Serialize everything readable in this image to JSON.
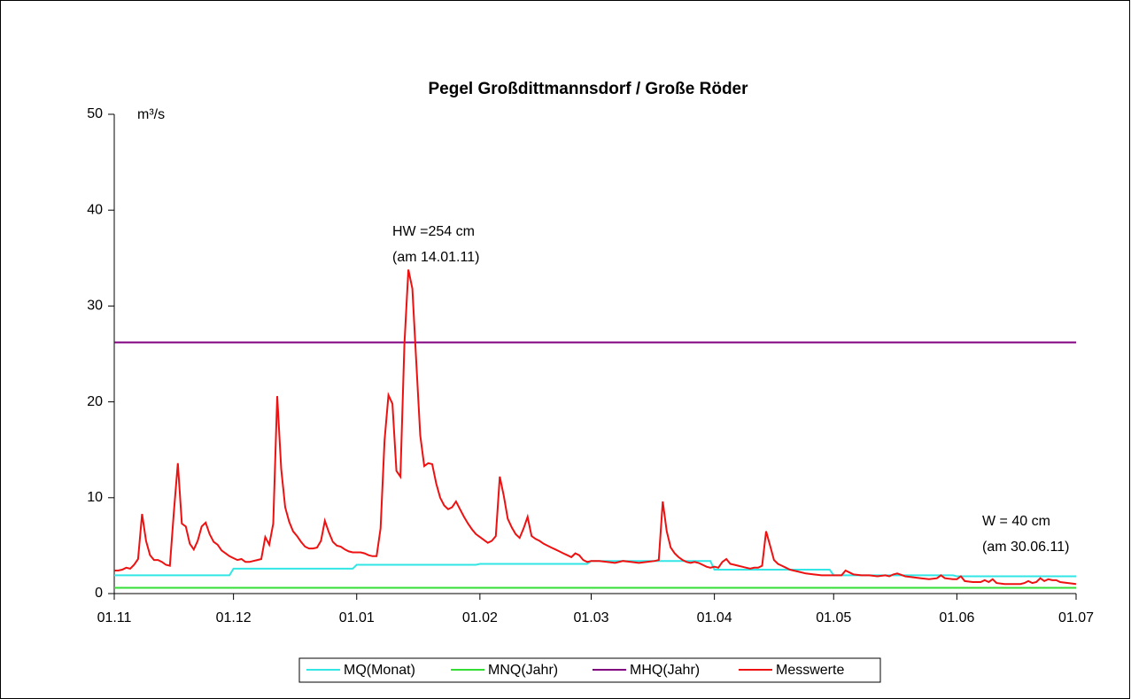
{
  "chart_data": {
    "type": "line",
    "title": "Pegel Großdittmannsdorf / Große Röder",
    "y_label": "m³/s",
    "annotations": [
      [
        "HW =254 cm",
        "(am 14.01.11)"
      ],
      [
        "W = 40 cm",
        "(am 30.06.11)"
      ]
    ],
    "xlim": [
      0,
      242
    ],
    "xticks": [
      {
        "value": 0,
        "label": "01.11"
      },
      {
        "value": 30,
        "label": "01.12"
      },
      {
        "value": 61,
        "label": "01.01"
      },
      {
        "value": 92,
        "label": "01.02"
      },
      {
        "value": 120,
        "label": "01.03"
      },
      {
        "value": 151,
        "label": "01.04"
      },
      {
        "value": 181,
        "label": "01.05"
      },
      {
        "value": 212,
        "label": "01.06"
      },
      {
        "value": 242,
        "label": "01.07"
      }
    ],
    "ylim": [
      0,
      50
    ],
    "yticks": [
      0,
      10,
      20,
      30,
      40,
      50
    ],
    "grid": false,
    "legend": "bottom",
    "series": [
      {
        "name": "MQ(Monat)",
        "color": "#33e6e6",
        "x": [
          0,
          29,
          30,
          60,
          61,
          91,
          92,
          119,
          120,
          150,
          151,
          180,
          181,
          211,
          212,
          242
        ],
        "values": [
          1.9,
          1.9,
          2.6,
          2.6,
          3.0,
          3.0,
          3.1,
          3.1,
          3.4,
          3.4,
          2.5,
          2.5,
          1.9,
          1.9,
          1.8,
          1.8
        ]
      },
      {
        "name": "MNQ(Jahr)",
        "color": "#33dd33",
        "x": [
          0,
          242
        ],
        "values": [
          0.6,
          0.6
        ]
      },
      {
        "name": "MHQ(Jahr)",
        "color": "#800080",
        "x": [
          0,
          242
        ],
        "values": [
          26.2,
          26.2
        ]
      },
      {
        "name": "Messwerte",
        "color": "#ee1111",
        "x": [
          0,
          1,
          2,
          3,
          4,
          5,
          6,
          7,
          8,
          9,
          10,
          11,
          12,
          13,
          14,
          15,
          16,
          17,
          18,
          19,
          20,
          21,
          22,
          23,
          24,
          25,
          26,
          27,
          28,
          29,
          30,
          31,
          32,
          33,
          34,
          35,
          36,
          37,
          38,
          39,
          40,
          41,
          42,
          43,
          44,
          45,
          46,
          47,
          48,
          49,
          50,
          51,
          52,
          53,
          54,
          55,
          56,
          57,
          58,
          59,
          60,
          61,
          62,
          63,
          64,
          65,
          66,
          67,
          68,
          69,
          70,
          71,
          72,
          73,
          74,
          75,
          76,
          77,
          78,
          79,
          80,
          81,
          82,
          83,
          84,
          85,
          86,
          87,
          88,
          89,
          90,
          91,
          92,
          93,
          94,
          95,
          96,
          97,
          98,
          99,
          100,
          101,
          102,
          103,
          104,
          105,
          106,
          107,
          108,
          109,
          110,
          111,
          112,
          113,
          114,
          115,
          116,
          117,
          118,
          119,
          120,
          122,
          124,
          126,
          128,
          130,
          132,
          134,
          136,
          137,
          138,
          139,
          140,
          141,
          142,
          143,
          144,
          145,
          146,
          147,
          148,
          149,
          150,
          151,
          152,
          153,
          154,
          155,
          156,
          157,
          158,
          159,
          160,
          161,
          162,
          163,
          164,
          165,
          166,
          167,
          168,
          169,
          170,
          172,
          174,
          176,
          178,
          180,
          182,
          183,
          184,
          185,
          186,
          188,
          190,
          192,
          194,
          195,
          196,
          197,
          199,
          201,
          203,
          205,
          207,
          208,
          209,
          211,
          212,
          213,
          214,
          216,
          218,
          219,
          220,
          221,
          222,
          224,
          226,
          228,
          229,
          230,
          231,
          232,
          233,
          234,
          235,
          236,
          237,
          238,
          240,
          242
        ],
        "values": [
          2.4,
          2.4,
          2.5,
          2.7,
          2.6,
          3.0,
          3.6,
          8.3,
          5.5,
          4.0,
          3.5,
          3.5,
          3.3,
          3.0,
          2.9,
          8.5,
          13.6,
          7.3,
          7.0,
          5.2,
          4.6,
          5.5,
          7.0,
          7.4,
          6.2,
          5.4,
          5.1,
          4.5,
          4.2,
          3.9,
          3.7,
          3.5,
          3.6,
          3.3,
          3.3,
          3.4,
          3.5,
          3.6,
          5.9,
          5.1,
          7.3,
          20.6,
          13.0,
          9.0,
          7.5,
          6.5,
          6.0,
          5.4,
          4.9,
          4.7,
          4.7,
          4.8,
          5.5,
          7.6,
          6.4,
          5.4,
          5.0,
          4.9,
          4.6,
          4.4,
          4.3,
          4.3,
          4.3,
          4.2,
          4.0,
          3.9,
          3.9,
          6.8,
          16.0,
          20.7,
          19.8,
          12.8,
          12.2,
          26.0,
          33.8,
          31.8,
          24.0,
          16.5,
          13.3,
          13.6,
          13.5,
          11.5,
          10.0,
          9.2,
          8.8,
          9.0,
          9.6,
          8.8,
          8.0,
          7.3,
          6.7,
          6.2,
          5.9,
          5.6,
          5.3,
          5.5,
          6.0,
          12.2,
          10.2,
          7.8,
          6.9,
          6.2,
          5.8,
          6.8,
          8.0,
          6.0,
          5.7,
          5.5,
          5.2,
          5.0,
          4.8,
          4.6,
          4.4,
          4.2,
          4.0,
          3.8,
          4.2,
          4.0,
          3.5,
          3.3,
          3.4,
          3.4,
          3.3,
          3.2,
          3.4,
          3.3,
          3.2,
          3.3,
          3.4,
          3.5,
          9.6,
          6.5,
          4.8,
          4.2,
          3.8,
          3.5,
          3.3,
          3.2,
          3.3,
          3.2,
          3.0,
          2.8,
          2.7,
          2.8,
          2.7,
          3.3,
          3.6,
          3.1,
          3.0,
          2.9,
          2.8,
          2.7,
          2.6,
          2.7,
          2.7,
          2.9,
          6.5,
          5.0,
          3.5,
          3.1,
          2.9,
          2.7,
          2.5,
          2.3,
          2.1,
          2.0,
          1.9,
          1.9,
          1.9,
          1.9,
          2.4,
          2.2,
          2.0,
          1.9,
          1.9,
          1.8,
          1.9,
          1.8,
          2.0,
          2.1,
          1.8,
          1.7,
          1.6,
          1.5,
          1.6,
          1.9,
          1.6,
          1.5,
          1.5,
          1.8,
          1.3,
          1.2,
          1.2,
          1.4,
          1.2,
          1.5,
          1.1,
          1.0,
          1.0,
          1.0,
          1.1,
          1.3,
          1.1,
          1.2,
          1.6,
          1.3,
          1.5,
          1.4,
          1.4,
          1.2,
          1.1,
          1.0
        ]
      }
    ]
  }
}
